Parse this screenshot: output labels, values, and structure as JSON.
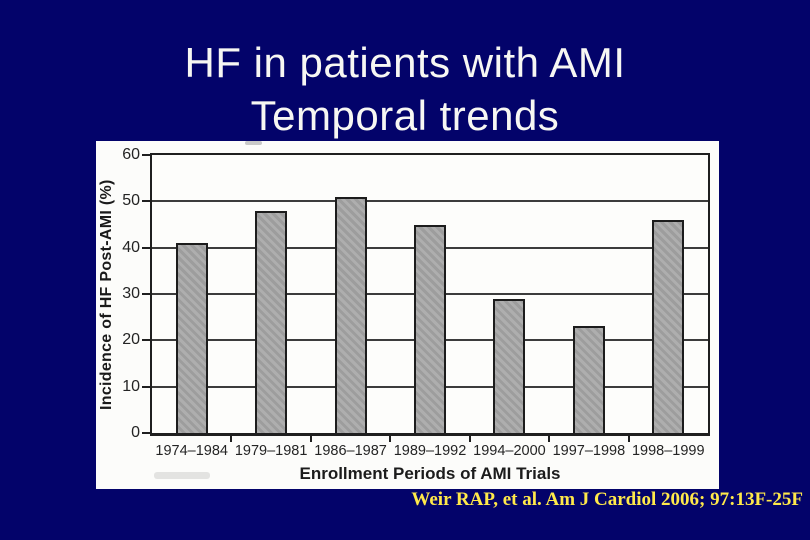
{
  "slide": {
    "title_line1": "HF in patients with AMI",
    "title_line2": "Temporal trends",
    "citation": "Weir RAP, et al. Am J Cardiol 2006; 97:13F-25F",
    "colors": {
      "background": "#03036a",
      "title_text": "#f7f7f3",
      "citation_text": "#ffe94a",
      "chart_background": "#fcfcfa",
      "bar_fill": "#a5a5a5",
      "bar_border": "#1c1c1c",
      "grid_line": "#3c3c3c",
      "axis_text": "#242424"
    }
  },
  "chart_data": {
    "type": "bar",
    "categories": [
      "1974–1984",
      "1979–1981",
      "1986–1987",
      "1989–1992",
      "1994–2000",
      "1997–1998",
      "1998–1999"
    ],
    "values": [
      41,
      48,
      51,
      45,
      29,
      23,
      46
    ],
    "title": "",
    "xlabel": "Enrollment Periods of AMI Trials",
    "ylabel": "Incidence of HF Post-AMI (%)",
    "ylim": [
      0,
      60
    ],
    "yticks": [
      0,
      10,
      20,
      30,
      40,
      50,
      60
    ],
    "grid": true,
    "legend": "none",
    "bar_color": "gray",
    "plot_style": "scanned grayscale journal figure"
  }
}
